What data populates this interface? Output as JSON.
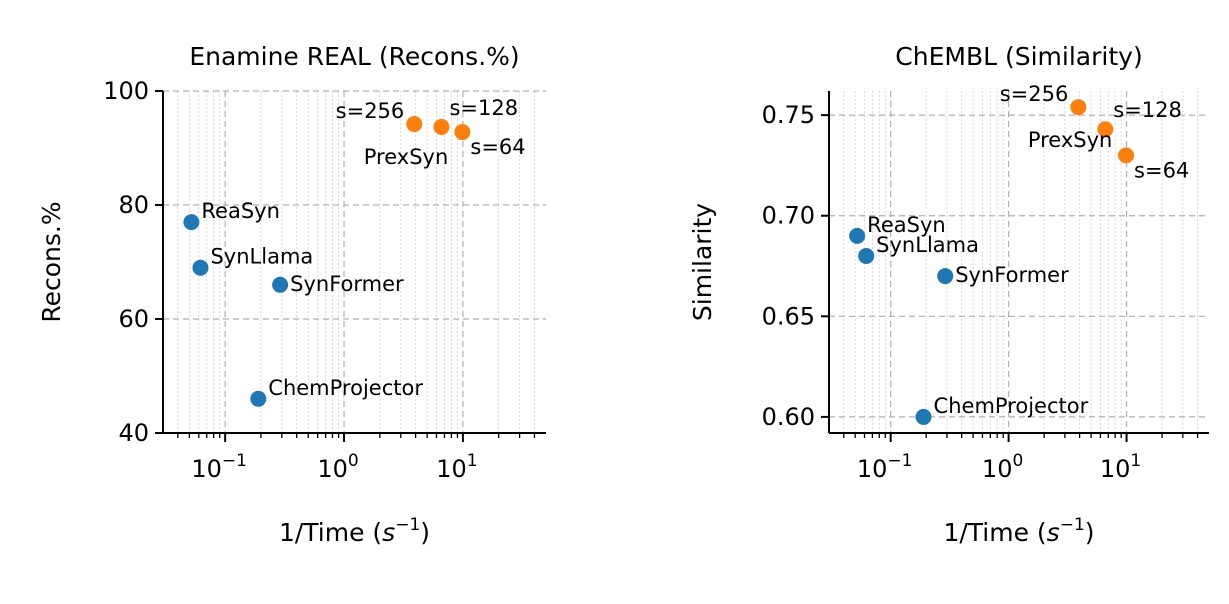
{
  "chart_data": [
    {
      "type": "scatter",
      "title": "Enamine REAL (Recons.%)",
      "xlabel_text": "1/Time (",
      "xlabel_math_base": "s",
      "xlabel_math_exp": "−1",
      "xlabel_close": ")",
      "ylabel": "Recons.%",
      "xscale": "log",
      "xlim": [
        0.03,
        50
      ],
      "ylim": [
        40,
        100
      ],
      "yticks": [
        40,
        60,
        80,
        100
      ],
      "ytick_labels": [
        "40",
        "60",
        "80",
        "100"
      ],
      "xticks": [
        0.1,
        1,
        10
      ],
      "xtick_bases": [
        "10",
        "10",
        "10"
      ],
      "xtick_exps": [
        "−1",
        "0",
        "1"
      ],
      "grid": true,
      "series": [
        {
          "color": "#1f77b4",
          "points": [
            {
              "label": "ReaSyn",
              "x": 0.052,
              "y": 77
            },
            {
              "label": "SynLlama",
              "x": 0.062,
              "y": 69
            },
            {
              "label": "SynFormer",
              "x": 0.29,
              "y": 66
            },
            {
              "label": "ChemProjector",
              "x": 0.19,
              "y": 46
            }
          ]
        },
        {
          "color": "#ff7f0e",
          "group_label": "PrexSyn",
          "points": [
            {
              "label": "s=256",
              "x": 3.9,
              "y": 94.2
            },
            {
              "label": "s=128",
              "x": 6.6,
              "y": 93.7
            },
            {
              "label": "s=64",
              "x": 9.9,
              "y": 92.8
            }
          ]
        }
      ]
    },
    {
      "type": "scatter",
      "title": "ChEMBL (Similarity)",
      "xlabel_text": "1/Time (",
      "xlabel_math_base": "s",
      "xlabel_math_exp": "−1",
      "xlabel_close": ")",
      "ylabel": "Similarity",
      "xscale": "log",
      "xlim": [
        0.03,
        50
      ],
      "ylim": [
        0.592,
        0.762
      ],
      "yticks": [
        0.6,
        0.65,
        0.7,
        0.75
      ],
      "ytick_labels": [
        "0.60",
        "0.65",
        "0.70",
        "0.75"
      ],
      "xticks": [
        0.1,
        1,
        10
      ],
      "xtick_bases": [
        "10",
        "10",
        "10"
      ],
      "xtick_exps": [
        "−1",
        "0",
        "1"
      ],
      "grid": true,
      "series": [
        {
          "color": "#1f77b4",
          "points": [
            {
              "label": "ReaSyn",
              "x": 0.052,
              "y": 0.69
            },
            {
              "label": "SynLlama",
              "x": 0.062,
              "y": 0.68
            },
            {
              "label": "SynFormer",
              "x": 0.29,
              "y": 0.67
            },
            {
              "label": "ChemProjector",
              "x": 0.19,
              "y": 0.6
            }
          ]
        },
        {
          "color": "#ff7f0e",
          "group_label": "PrexSyn",
          "points": [
            {
              "label": "s=256",
              "x": 3.9,
              "y": 0.754
            },
            {
              "label": "s=128",
              "x": 6.6,
              "y": 0.743
            },
            {
              "label": "s=64",
              "x": 9.9,
              "y": 0.73
            }
          ]
        }
      ]
    }
  ]
}
